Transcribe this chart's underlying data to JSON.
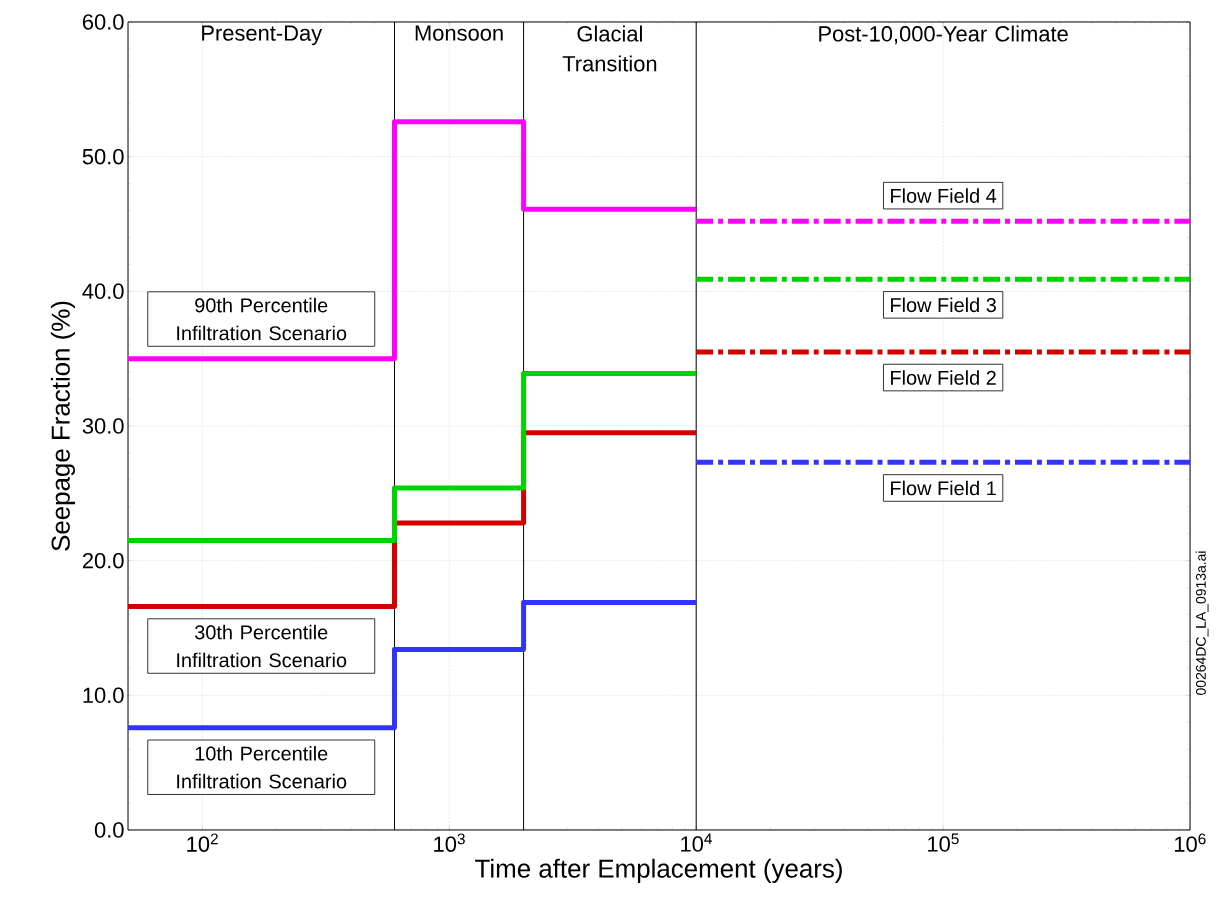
{
  "chart_data": {
    "type": "step",
    "xlabel": "Time after Emplacement (years)",
    "ylabel": "Seepage Fraction (%)",
    "log": "x",
    "grid": true,
    "xlim": [
      50,
      1000000
    ],
    "ylim": [
      0,
      60
    ],
    "xticks": [
      {
        "value": 100,
        "label": "10$^{2}$"
      },
      {
        "value": 1000,
        "label": "10$^{3}$"
      },
      {
        "value": 10000,
        "label": "10$^{4}$"
      },
      {
        "value": 100000,
        "label": "10$^{5}$"
      },
      {
        "value": 1000000,
        "label": "10$^{6}$"
      }
    ],
    "yticks": [
      {
        "value": 0,
        "label": "0.0"
      },
      {
        "value": 10,
        "label": "10.0"
      },
      {
        "value": 20,
        "label": "20.0"
      },
      {
        "value": 30,
        "label": "30.0"
      },
      {
        "value": 40,
        "label": "40.0"
      },
      {
        "value": 50,
        "label": "50.0"
      },
      {
        "value": 60,
        "label": "60.0"
      }
    ],
    "series": [
      {
        "name": "10th Percentile Infiltration Scenario",
        "color": "#3333ff",
        "line_style": "solid",
        "x": [
          50,
          600,
          2000,
          10000
        ],
        "values": [
          7.6,
          13.4,
          16.9,
          16.9
        ]
      },
      {
        "name": "30th Percentile Infiltration Scenario",
        "color": "#d40000",
        "line_style": "solid",
        "x": [
          50,
          600,
          2000,
          10000
        ],
        "values": [
          16.6,
          22.8,
          29.5,
          29.5
        ]
      },
      {
        "color": "#00d400",
        "line_style": "solid",
        "x": [
          50,
          600,
          2000,
          10000
        ],
        "values": [
          21.5,
          25.4,
          33.9,
          33.9
        ]
      },
      {
        "name": "90th Percentile Infiltration Scenario",
        "color": "#ff00ff",
        "line_style": "solid",
        "x": [
          50,
          600,
          2000,
          10000
        ],
        "values": [
          35.0,
          52.6,
          46.1,
          46.1
        ]
      },
      {
        "type": "line",
        "name": "Flow Field 1",
        "color": "#3333ff",
        "line_style": "dashed",
        "x": [
          10000,
          1000000
        ],
        "values": [
          27.3,
          27.3
        ]
      },
      {
        "type": "line",
        "name": "Flow Field 2",
        "color": "#d40000",
        "line_style": "dashed",
        "x": [
          10000,
          1000000
        ],
        "values": [
          35.5,
          35.5
        ]
      },
      {
        "type": "line",
        "name": "Flow Field 3",
        "color": "#00d400",
        "line_style": "dashed",
        "x": [
          10000,
          1000000
        ],
        "values": [
          40.9,
          40.9
        ]
      },
      {
        "type": "line",
        "name": "Flow Field 4",
        "color": "#ff00ff",
        "line_style": "dashed",
        "x": [
          10000,
          1000000
        ],
        "values": [
          45.2,
          45.2
        ]
      }
    ],
    "ref_lines": [
      {
        "axis": "x",
        "value": 600,
        "color": "#000000"
      },
      {
        "axis": "x",
        "value": 2000,
        "color": "#000000"
      },
      {
        "axis": "x",
        "value": 10000,
        "color": "#000000"
      }
    ],
    "annotations": [
      "Present-Day",
      "Monsoon",
      "Glacial Transition",
      "Post-10,000-Year Climate",
      "00264DC_LA_0913a.ai"
    ]
  }
}
